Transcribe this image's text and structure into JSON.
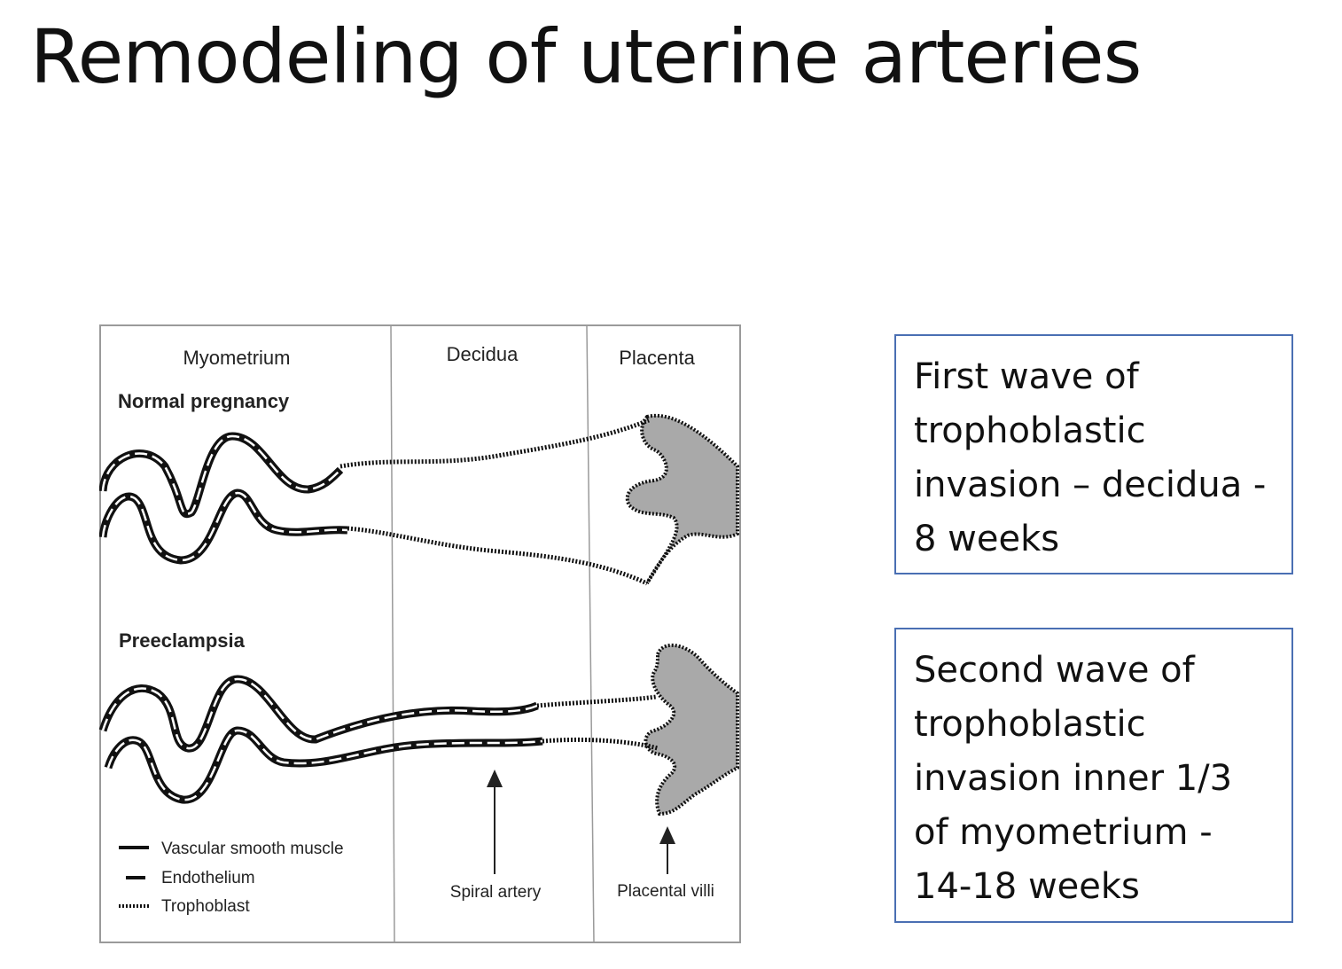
{
  "slide": {
    "title": "Remodeling of uterine arteries"
  },
  "diagram": {
    "columns": [
      "Myometrium",
      "Decidua",
      "Placenta"
    ],
    "section_normal": "Normal pregnancy",
    "section_preeclampsia": "Preeclampsia",
    "legend": [
      {
        "label": "Vascular smooth muscle",
        "style": "solid"
      },
      {
        "label": "Endothelium",
        "style": "dashed"
      },
      {
        "label": "Trophoblast",
        "style": "dotted"
      }
    ],
    "arrow_labels": {
      "spiral_artery": "Spiral artery",
      "placental_villi": "Placental villi"
    },
    "colors": {
      "villi_fill": "#a9a9a9",
      "stroke": "#111111",
      "frame": "#9a9a9a"
    }
  },
  "notes": [
    {
      "text": "First wave of trophoblastic invasion – decidua - 8 weeks"
    },
    {
      "text": "Second wave of trophoblastic invasion inner 1/3 of myometrium - 14-18 weeks"
    }
  ],
  "colors": {
    "box_border": "#4a6fb3",
    "text": "#111111"
  }
}
